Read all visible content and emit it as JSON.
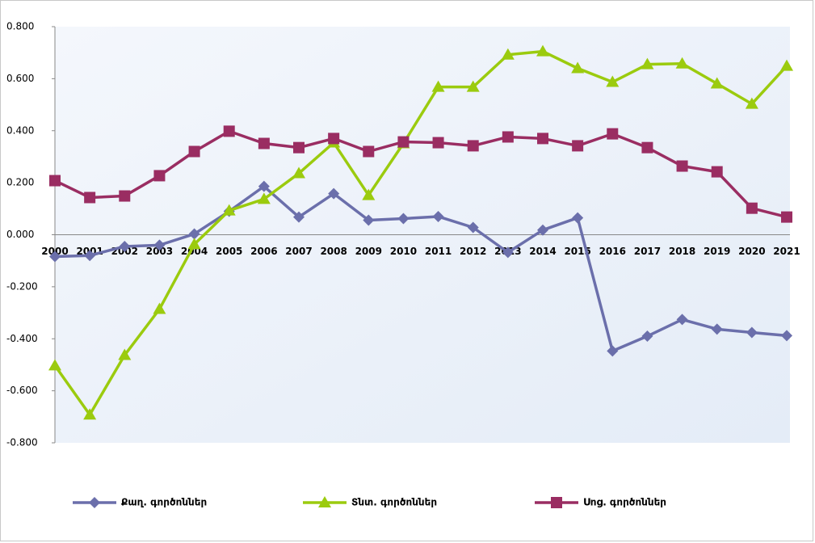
{
  "chart_data": {
    "type": "line",
    "categories": [
      "2000",
      "2001",
      "2002",
      "2003",
      "2004",
      "2005",
      "2006",
      "2007",
      "2008",
      "2009",
      "2010",
      "2011",
      "2012",
      "2013",
      "2014",
      "2015",
      "2016",
      "2017",
      "2018",
      "2019",
      "2020",
      "2021"
    ],
    "series": [
      {
        "name": "Քաղ. գործոններ",
        "color": "#6b6fab",
        "marker": "diamond",
        "values": [
          -0.084,
          -0.08,
          -0.045,
          -0.04,
          0.003,
          0.09,
          0.186,
          0.068,
          0.158,
          0.056,
          0.062,
          0.07,
          0.028,
          -0.068,
          0.018,
          0.065,
          -0.447,
          -0.39,
          -0.326,
          -0.363,
          -0.376,
          -0.388
        ]
      },
      {
        "name": "Տնտ. գործոններ",
        "color": "#9bcb0e",
        "marker": "triangle",
        "values": [
          -0.503,
          -0.692,
          -0.463,
          -0.286,
          -0.037,
          0.093,
          0.137,
          0.236,
          0.354,
          0.152,
          0.351,
          0.568,
          0.568,
          0.692,
          0.705,
          0.64,
          0.587,
          0.655,
          0.658,
          0.581,
          0.503,
          0.649
        ]
      },
      {
        "name": "Սոց. գործոններ",
        "color": "#9a2d62",
        "marker": "square",
        "values": [
          0.208,
          0.143,
          0.149,
          0.227,
          0.32,
          0.398,
          0.351,
          0.335,
          0.37,
          0.32,
          0.357,
          0.354,
          0.342,
          0.376,
          0.37,
          0.342,
          0.388,
          0.335,
          0.264,
          0.242,
          0.102,
          0.068
        ]
      }
    ],
    "ylim": [
      -0.8,
      0.8
    ],
    "yticks": [
      {
        "value": -0.8,
        "label": "-0.800"
      },
      {
        "value": -0.6,
        "label": "-0.600"
      },
      {
        "value": -0.4,
        "label": "-0.400"
      },
      {
        "value": -0.2,
        "label": "-0.200"
      },
      {
        "value": 0,
        "label": "0.000"
      },
      {
        "value": 0.2,
        "label": "0.200"
      },
      {
        "value": 0.4,
        "label": "0.400"
      },
      {
        "value": 0.6,
        "label": "0.600"
      },
      {
        "value": 0.8,
        "label": "0.800"
      }
    ],
    "legend": "bottom"
  }
}
